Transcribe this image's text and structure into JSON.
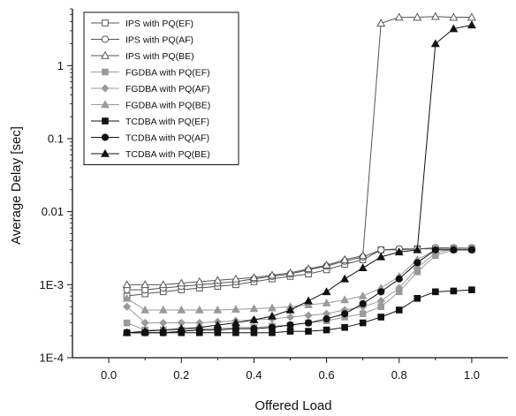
{
  "chart_data": {
    "type": "line",
    "title": "",
    "xlabel": "Offered Load",
    "ylabel": "Average Delay [sec]",
    "xlim": [
      -0.1,
      1.1
    ],
    "ylim": [
      0.0001,
      6
    ],
    "yscale": "log",
    "x_ticks": [
      "0.0",
      "0.2",
      "0.4",
      "0.6",
      "0.8",
      "1.0"
    ],
    "y_ticks": [
      "1E-4",
      "1E-3",
      "0.01",
      "0.1",
      "1"
    ],
    "legend_position": "top-left",
    "x": [
      0.05,
      0.1,
      0.15,
      0.2,
      0.25,
      0.3,
      0.35,
      0.4,
      0.45,
      0.5,
      0.55,
      0.6,
      0.65,
      0.7,
      0.75,
      0.8,
      0.85,
      0.9,
      0.95,
      1.0
    ],
    "series": [
      {
        "name": "IPS with PQ(EF)",
        "marker": "square-open",
        "color": "#555555",
        "values": [
          0.0007,
          0.00075,
          0.0008,
          0.00085,
          0.0009,
          0.00095,
          0.001,
          0.0011,
          0.0012,
          0.0013,
          0.0014,
          0.0016,
          0.0019,
          0.0022,
          0.003,
          0.003,
          0.0031,
          0.0031,
          0.0031,
          0.0031
        ]
      },
      {
        "name": "IPS with PQ(AF)",
        "marker": "circle-open",
        "color": "#555555",
        "values": [
          0.00085,
          0.00085,
          0.0009,
          0.00095,
          0.001,
          0.00105,
          0.0011,
          0.0012,
          0.0013,
          0.0014,
          0.0016,
          0.0018,
          0.0021,
          0.0024,
          0.003,
          0.0031,
          0.0031,
          0.0032,
          0.0032,
          0.0032
        ]
      },
      {
        "name": "IPS with PQ(BE)",
        "marker": "triangle-open",
        "color": "#555555",
        "values": [
          0.001,
          0.001,
          0.001,
          0.00105,
          0.0011,
          0.00115,
          0.0012,
          0.00125,
          0.00135,
          0.00145,
          0.00165,
          0.00185,
          0.0022,
          0.0025,
          3.8,
          4.6,
          4.6,
          4.7,
          4.6,
          4.6
        ]
      },
      {
        "name": "FGDBA with PQ(EF)",
        "marker": "square-gray",
        "color": "#9a9a9a",
        "values": [
          0.0003,
          0.00024,
          0.00024,
          0.00024,
          0.00025,
          0.00025,
          0.00026,
          0.00026,
          0.00027,
          0.00028,
          0.0003,
          0.00032,
          0.00036,
          0.0004,
          0.0005,
          0.0008,
          0.0015,
          0.0025,
          0.003,
          0.003
        ]
      },
      {
        "name": "FGDBA with PQ(AF)",
        "marker": "diamond-gray",
        "color": "#9a9a9a",
        "values": [
          0.0005,
          0.0003,
          0.0003,
          0.0003,
          0.0003,
          0.00031,
          0.00032,
          0.00033,
          0.00034,
          0.00036,
          0.00038,
          0.0004,
          0.00045,
          0.0005,
          0.0006,
          0.0009,
          0.0017,
          0.0027,
          0.0031,
          0.0031
        ]
      },
      {
        "name": "FGDBA with PQ(BE)",
        "marker": "triangle-gray",
        "color": "#9a9a9a",
        "values": [
          0.00065,
          0.00045,
          0.00045,
          0.00045,
          0.00045,
          0.00045,
          0.00046,
          0.00047,
          0.00048,
          0.0005,
          0.00053,
          0.00056,
          0.00062,
          0.0007,
          0.0009,
          0.0013,
          0.0022,
          0.003,
          0.0032,
          0.0032
        ]
      },
      {
        "name": "TCDBA with PQ(EF)",
        "marker": "square-filled",
        "color": "#111111",
        "values": [
          0.00022,
          0.00022,
          0.00022,
          0.00022,
          0.00022,
          0.00022,
          0.00022,
          0.00022,
          0.00022,
          0.00023,
          0.00023,
          0.00024,
          0.00026,
          0.0003,
          0.00036,
          0.00045,
          0.00065,
          0.0008,
          0.00082,
          0.00085
        ]
      },
      {
        "name": "TCDBA with PQ(AF)",
        "marker": "circle-filled",
        "color": "#111111",
        "values": [
          0.00022,
          0.00022,
          0.00022,
          0.00023,
          0.00024,
          0.00024,
          0.00025,
          0.00025,
          0.00026,
          0.00028,
          0.0003,
          0.00034,
          0.0004,
          0.00055,
          0.0008,
          0.0012,
          0.002,
          0.003,
          0.003,
          0.003
        ]
      },
      {
        "name": "TCDBA with PQ(BE)",
        "marker": "triangle-filled",
        "color": "#111111",
        "values": [
          0.00022,
          0.00023,
          0.00024,
          0.00025,
          0.00026,
          0.00028,
          0.0003,
          0.00033,
          0.00037,
          0.00045,
          0.0006,
          0.0008,
          0.0012,
          0.0017,
          0.0024,
          0.0028,
          0.003,
          2.0,
          3.2,
          3.6
        ]
      }
    ]
  }
}
